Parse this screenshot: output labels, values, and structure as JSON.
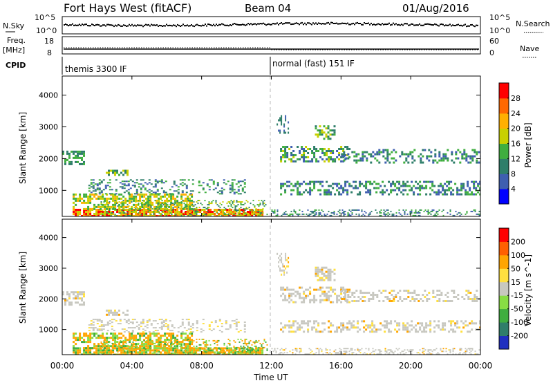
{
  "header": {
    "title": "Fort Hays West (fitACF)",
    "beam": "Beam 04",
    "date": "01/Aug/2016"
  },
  "status_panels": {
    "nsky_label": "N.Sky",
    "nsky_ticks": [
      "10^5",
      "10^0"
    ],
    "nsearch_label": "N.Search",
    "nsearch_ticks": [
      "10^5",
      "10^0"
    ],
    "freq_label_line1": "Freq.",
    "freq_label_line2": "[MHz]",
    "freq_ticks": [
      "18",
      "8"
    ],
    "nave_label": "Nave",
    "nave_ticks": [
      "60",
      "0"
    ],
    "cpid_label": "CPID",
    "cpid_segments": [
      {
        "text": "themis 3300 IF",
        "start_hour": 0
      },
      {
        "text": "normal (fast) 151 IF",
        "start_hour": 12
      }
    ]
  },
  "chart_data": [
    {
      "type": "heatmap",
      "name": "power",
      "ylabel": "Slant Range [km]",
      "yticks": [
        "4000",
        "3000",
        "2000",
        "1000"
      ],
      "ylim": [
        180,
        4600
      ],
      "colorbar_label": "Power [dB]",
      "colorbar_ticks": [
        "28",
        "24",
        "20",
        "16",
        "12",
        "8",
        "4"
      ],
      "colors": [
        "#0000ff",
        "#3f5fb0",
        "#2f7e6a",
        "#3fae3f",
        "#c8d000",
        "#ffb000",
        "#ff6800",
        "#ff0000"
      ]
    },
    {
      "type": "heatmap",
      "name": "velocity",
      "ylabel": "Slant Range [km]",
      "yticks": [
        "4000",
        "3000",
        "2000",
        "1000"
      ],
      "ylim": [
        180,
        4600
      ],
      "colorbar_label": "Velocity [m s^-1]",
      "colorbar_ticks": [
        "200",
        "100",
        "50",
        "15",
        "-15",
        "-50",
        "-100",
        "-200"
      ],
      "colors": [
        "#2030c0",
        "#2f7e6a",
        "#3fae3f",
        "#88dd44",
        "#c8c8c0",
        "#ffe040",
        "#ffa500",
        "#ff6000",
        "#ff0000"
      ]
    }
  ],
  "x_axis": {
    "label": "Time UT",
    "ticks": [
      "00:00",
      "04:00",
      "08:00",
      "12:00",
      "16:00",
      "20:00",
      "00:00"
    ],
    "xlim_hours": [
      0,
      24
    ]
  }
}
